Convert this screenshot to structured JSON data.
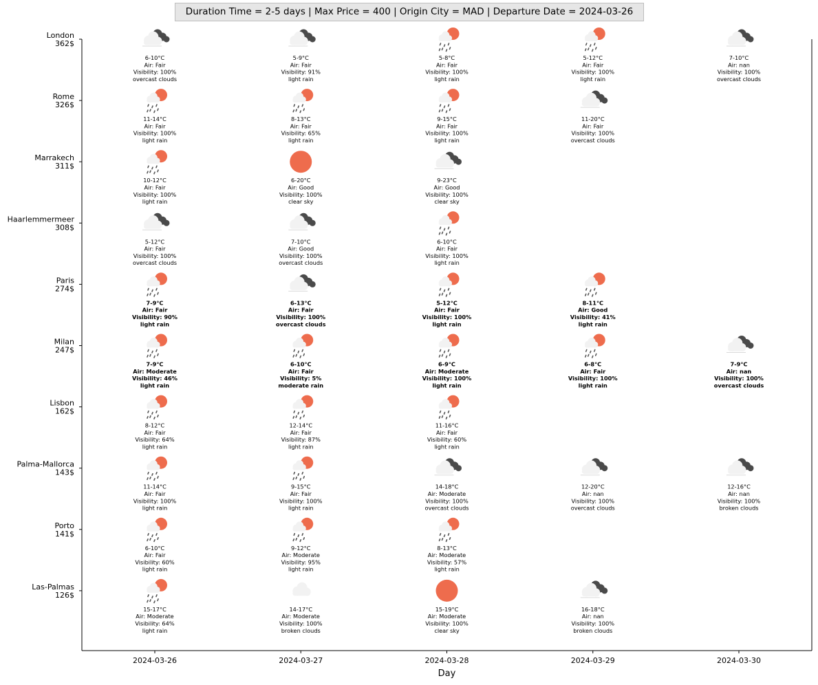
{
  "header": "Duration Time = 2-5 days | Max Price = 400 | Origin City = MAD | Departure Date = 2024-03-26",
  "chart_data": {
    "type": "table",
    "title": "Duration Time = 2-5 days | Max Price = 400 | Origin City = MAD | Departure Date = 2024-03-26",
    "xlabel": "Day",
    "ylabel": "",
    "x": [
      "2024-03-26",
      "2024-03-27",
      "2024-03-28",
      "2024-03-29",
      "2024-03-30"
    ],
    "colors": {
      "sun": "#ee6c4d",
      "dark_cloud": "#4a4a4a",
      "light_cloud": "#f2f2f2",
      "rain": "#555555"
    },
    "cities": [
      {
        "name": "London",
        "price": "362$",
        "days": [
          {
            "d": 0,
            "temp": "6-10°C",
            "air": "Air: Fair",
            "vis": "Visibility: 100%",
            "desc": "overcast clouds",
            "icon": "overcast"
          },
          {
            "d": 1,
            "temp": "5-9°C",
            "air": "Air: Fair",
            "vis": "Visibility: 91%",
            "desc": "light rain",
            "icon": "overcast"
          },
          {
            "d": 2,
            "temp": "5-8°C",
            "air": "Air: Fair",
            "vis": "Visibility: 100%",
            "desc": "light rain",
            "icon": "rain"
          },
          {
            "d": 3,
            "temp": "5-12°C",
            "air": "Air: Fair",
            "vis": "Visibility: 100%",
            "desc": "light rain",
            "icon": "rain"
          },
          {
            "d": 4,
            "temp": "7-10°C",
            "air": "Air: nan",
            "vis": "Visibility: 100%",
            "desc": "overcast clouds",
            "icon": "overcast"
          }
        ]
      },
      {
        "name": "Rome",
        "price": "326$",
        "days": [
          {
            "d": 0,
            "temp": "11-14°C",
            "air": "Air: Fair",
            "vis": "Visibility: 100%",
            "desc": "light rain",
            "icon": "rain"
          },
          {
            "d": 1,
            "temp": "8-13°C",
            "air": "Air: Fair",
            "vis": "Visibility: 65%",
            "desc": "light rain",
            "icon": "rain"
          },
          {
            "d": 2,
            "temp": "9-15°C",
            "air": "Air: Fair",
            "vis": "Visibility: 100%",
            "desc": "light rain",
            "icon": "rain"
          },
          {
            "d": 3,
            "temp": "11-20°C",
            "air": "Air: Fair",
            "vis": "Visibility: 100%",
            "desc": "overcast clouds",
            "icon": "overcast"
          }
        ]
      },
      {
        "name": "Marrakech",
        "price": "311$",
        "days": [
          {
            "d": 0,
            "temp": "10-12°C",
            "air": "Air: Fair",
            "vis": "Visibility: 100%",
            "desc": "light rain",
            "icon": "rain"
          },
          {
            "d": 1,
            "temp": "6-20°C",
            "air": "Air: Good",
            "vis": "Visibility: 100%",
            "desc": "clear sky",
            "icon": "clear"
          },
          {
            "d": 2,
            "temp": "9-23°C",
            "air": "Air: Good",
            "vis": "Visibility: 100%",
            "desc": "clear sky",
            "icon": "overcast"
          }
        ]
      },
      {
        "name": "Haarlemmermeer",
        "price": "308$",
        "days": [
          {
            "d": 0,
            "temp": "5-12°C",
            "air": "Air: Fair",
            "vis": "Visibility: 100%",
            "desc": "overcast clouds",
            "icon": "overcast"
          },
          {
            "d": 1,
            "temp": "7-10°C",
            "air": "Air: Good",
            "vis": "Visibility: 100%",
            "desc": "overcast clouds",
            "icon": "overcast"
          },
          {
            "d": 2,
            "temp": "6-10°C",
            "air": "Air: Fair",
            "vis": "Visibility: 100%",
            "desc": "light rain",
            "icon": "rain"
          }
        ]
      },
      {
        "name": "Paris",
        "price": "274$",
        "bold": true,
        "days": [
          {
            "d": 0,
            "temp": "7-9°C",
            "air": "Air: Fair",
            "vis": "Visibility: 90%",
            "desc": "light rain",
            "icon": "rain"
          },
          {
            "d": 1,
            "temp": "6-13°C",
            "air": "Air: Fair",
            "vis": "Visibility: 100%",
            "desc": "overcast clouds",
            "icon": "overcast"
          },
          {
            "d": 2,
            "temp": "5-12°C",
            "air": "Air: Fair",
            "vis": "Visibility: 100%",
            "desc": "light rain",
            "icon": "rain"
          },
          {
            "d": 3,
            "temp": "8-11°C",
            "air": "Air: Good",
            "vis": "Visibility: 41%",
            "desc": "light rain",
            "icon": "rain"
          }
        ]
      },
      {
        "name": "Milan",
        "price": "247$",
        "bold": true,
        "days": [
          {
            "d": 0,
            "temp": "7-9°C",
            "air": "Air: Moderate",
            "vis": "Visibility: 46%",
            "desc": "light rain",
            "icon": "rain"
          },
          {
            "d": 1,
            "temp": "6-10°C",
            "air": "Air: Fair",
            "vis": "Visibility: 5%",
            "desc": "moderate rain",
            "icon": "rain"
          },
          {
            "d": 2,
            "temp": "6-9°C",
            "air": "Air: Moderate",
            "vis": "Visibility: 100%",
            "desc": "light rain",
            "icon": "rain"
          },
          {
            "d": 3,
            "temp": "6-8°C",
            "air": "Air: Fair",
            "vis": "Visibility: 100%",
            "desc": "light rain",
            "icon": "rain"
          },
          {
            "d": 4,
            "temp": "7-9°C",
            "air": "Air: nan",
            "vis": "Visibility: 100%",
            "desc": "overcast clouds",
            "icon": "overcast"
          }
        ]
      },
      {
        "name": "Lisbon",
        "price": "162$",
        "days": [
          {
            "d": 0,
            "temp": "8-12°C",
            "air": "Air: Fair",
            "vis": "Visibility: 64%",
            "desc": "light rain",
            "icon": "rain"
          },
          {
            "d": 1,
            "temp": "12-14°C",
            "air": "Air: Fair",
            "vis": "Visibility: 87%",
            "desc": "light rain",
            "icon": "rain"
          },
          {
            "d": 2,
            "temp": "11-16°C",
            "air": "Air: Fair",
            "vis": "Visibility: 60%",
            "desc": "light rain",
            "icon": "rain"
          }
        ]
      },
      {
        "name": "Palma-Mallorca",
        "price": "143$",
        "days": [
          {
            "d": 0,
            "temp": "11-14°C",
            "air": "Air: Fair",
            "vis": "Visibility: 100%",
            "desc": "light rain",
            "icon": "rain"
          },
          {
            "d": 1,
            "temp": "9-15°C",
            "air": "Air: Fair",
            "vis": "Visibility: 100%",
            "desc": "light rain",
            "icon": "rain"
          },
          {
            "d": 2,
            "temp": "14-18°C",
            "air": "Air: Moderate",
            "vis": "Visibility: 100%",
            "desc": "overcast clouds",
            "icon": "overcast"
          },
          {
            "d": 3,
            "temp": "12-20°C",
            "air": "Air: nan",
            "vis": "Visibility: 100%",
            "desc": "overcast clouds",
            "icon": "overcast"
          },
          {
            "d": 4,
            "temp": "12-16°C",
            "air": "Air: nan",
            "vis": "Visibility: 100%",
            "desc": "broken clouds",
            "icon": "overcast"
          }
        ]
      },
      {
        "name": "Porto",
        "price": "141$",
        "days": [
          {
            "d": 0,
            "temp": "6-10°C",
            "air": "Air: Fair",
            "vis": "Visibility: 60%",
            "desc": "light rain",
            "icon": "rain"
          },
          {
            "d": 1,
            "temp": "9-12°C",
            "air": "Air: Moderate",
            "vis": "Visibility: 95%",
            "desc": "light rain",
            "icon": "rain"
          },
          {
            "d": 2,
            "temp": "8-13°C",
            "air": "Air: Moderate",
            "vis": "Visibility: 57%",
            "desc": "light rain",
            "icon": "rain"
          }
        ]
      },
      {
        "name": "Las-Palmas",
        "price": "126$",
        "days": [
          {
            "d": 0,
            "temp": "15-17°C",
            "air": "Air: Moderate",
            "vis": "Visibility: 64%",
            "desc": "light rain",
            "icon": "rain"
          },
          {
            "d": 1,
            "temp": "14-17°C",
            "air": "Air: Moderate",
            "vis": "Visibility: 100%",
            "desc": "broken clouds",
            "icon": "broken"
          },
          {
            "d": 2,
            "temp": "15-19°C",
            "air": "Air: Moderate",
            "vis": "Visibility: 100%",
            "desc": "clear sky",
            "icon": "clear"
          },
          {
            "d": 3,
            "temp": "16-18°C",
            "air": "Air: nan",
            "vis": "Visibility: 100%",
            "desc": "broken clouds",
            "icon": "overcast"
          }
        ]
      }
    ]
  }
}
